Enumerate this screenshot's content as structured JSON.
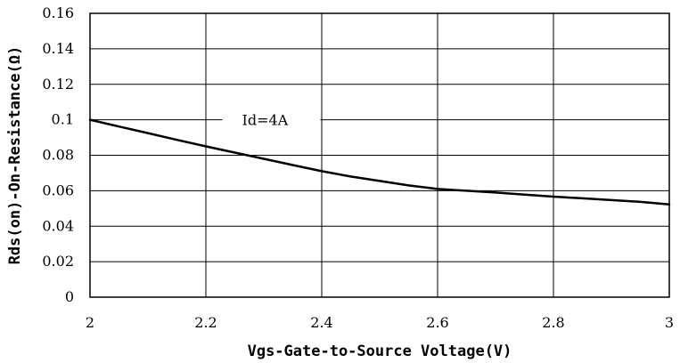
{
  "chart_data": {
    "type": "line",
    "xlabel": "Vgs-Gate-to-Source Voltage(V)",
    "ylabel": "Rds(on)-On-Resistance(Ω)",
    "xlim": [
      2,
      3
    ],
    "ylim": [
      0,
      0.16
    ],
    "x_ticks": [
      "2",
      "2.2",
      "2.4",
      "2.6",
      "2.8",
      "3"
    ],
    "y_ticks": [
      "0",
      "0.02",
      "0.04",
      "0.06",
      "0.08",
      "0.1",
      "0.12",
      "0.14",
      "0.16"
    ],
    "x_tick_values": [
      2,
      2.2,
      2.4,
      2.6,
      2.8,
      3
    ],
    "y_tick_values": [
      0,
      0.02,
      0.04,
      0.06,
      0.08,
      0.1,
      0.12,
      0.14,
      0.16
    ],
    "grid": true,
    "annotation": {
      "text": "Id=4A",
      "x": 2.25,
      "y": 0.1
    },
    "series": [
      {
        "x": [
          2.0,
          2.05,
          2.1,
          2.15,
          2.2,
          2.25,
          2.3,
          2.35,
          2.4,
          2.45,
          2.5,
          2.55,
          2.6,
          2.65,
          2.7,
          2.75,
          2.8,
          2.85,
          2.9,
          2.95,
          3.0
        ],
        "y": [
          0.1,
          0.0962,
          0.0925,
          0.0887,
          0.085,
          0.0815,
          0.078,
          0.0745,
          0.071,
          0.068,
          0.0655,
          0.063,
          0.061,
          0.06,
          0.059,
          0.0578,
          0.0567,
          0.0557,
          0.0547,
          0.0537,
          0.0523
        ]
      }
    ]
  }
}
